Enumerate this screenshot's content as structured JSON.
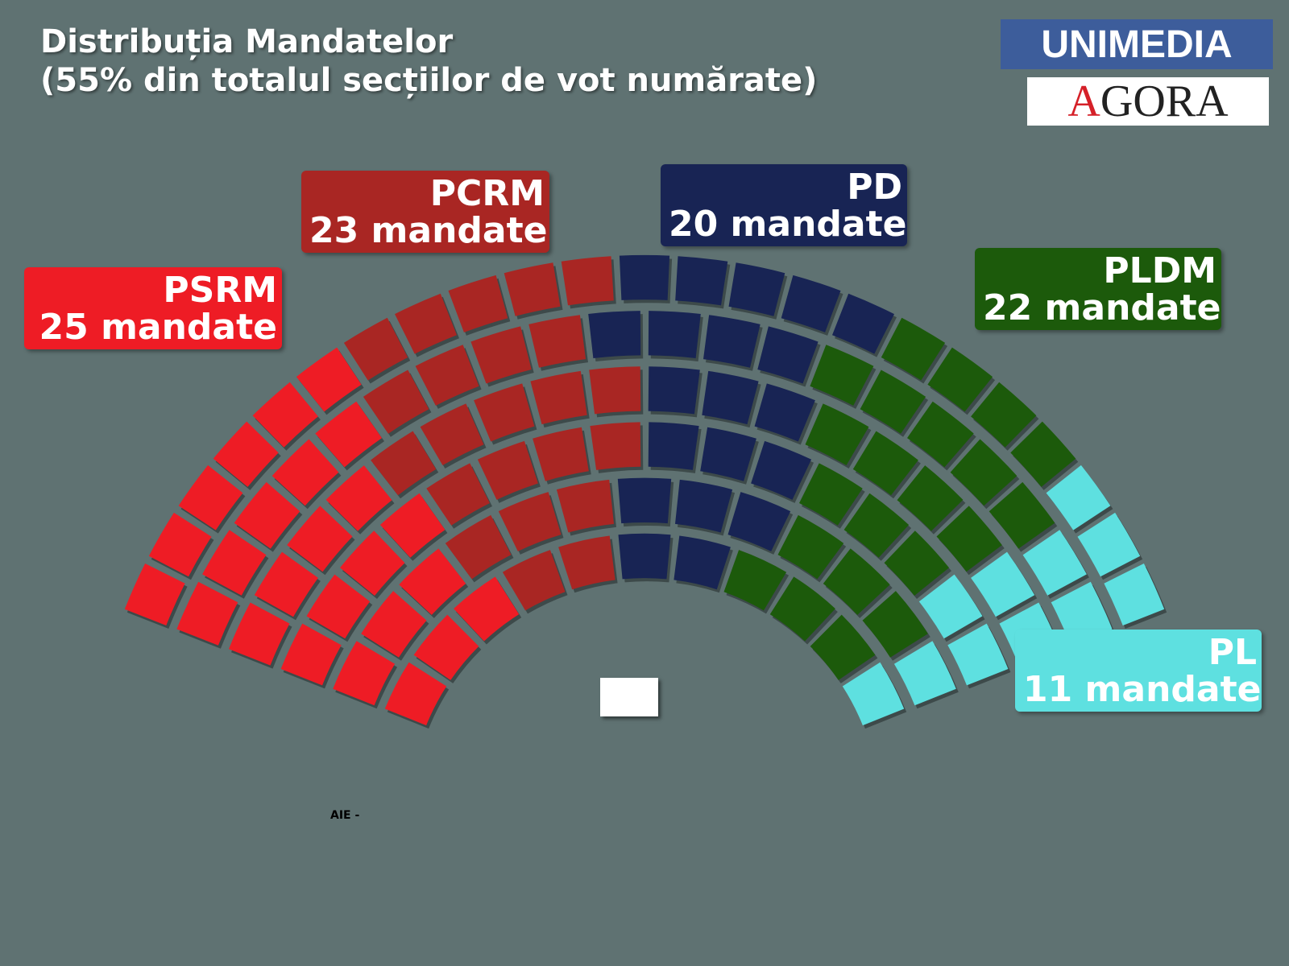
{
  "title": {
    "line1": "Distribuția Mandatelor",
    "line2": "(55% din totalul secțiilor de vot numărate)"
  },
  "logos": {
    "unimedia": "UNIMEDIA",
    "agora_first": "A",
    "agora_rest": "GORA"
  },
  "footnote": "AIE -",
  "chart_data": {
    "type": "parliament",
    "total_seats": 101,
    "rows": 6,
    "series": [
      {
        "name": "PSRM",
        "label": "25 mandate",
        "value": 25,
        "color": "#ee1c25"
      },
      {
        "name": "PCRM",
        "label": "23 mandate",
        "value": 23,
        "color": "#a92623"
      },
      {
        "name": "PD",
        "label": "20 mandate",
        "value": 20,
        "color": "#182454"
      },
      {
        "name": "PLDM",
        "label": "22 mandate",
        "value": 22,
        "color": "#1c5a0b"
      },
      {
        "name": "PL",
        "label": "11 mandate",
        "value": 11,
        "color": "#5ee0e0"
      }
    ]
  }
}
